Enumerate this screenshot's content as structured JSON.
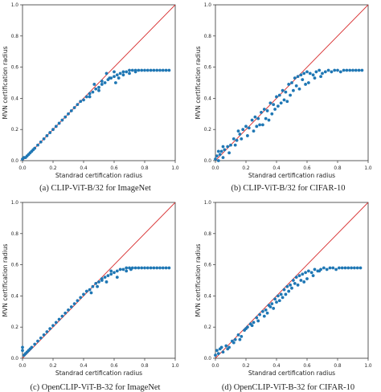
{
  "chart_data": [
    {
      "type": "scatter",
      "caption": "(a) CLIP-ViT-B/32 for ImageNet",
      "xlabel": "Standrad certification radius",
      "ylabel": "MVN certification radius",
      "xlim": [
        0,
        1.0
      ],
      "ylim": [
        0,
        1.0
      ],
      "xticks": [
        "0.0",
        "0.2",
        "0.4",
        "0.6",
        "0.8",
        "1.0"
      ],
      "yticks": [
        "0.0",
        "0.2",
        "0.4",
        "0.6",
        "0.8",
        "1.0"
      ],
      "grid": false,
      "colors": {
        "points": "#1f77b4",
        "reference": "#d62728"
      },
      "reference_line": {
        "x": [
          0,
          1
        ],
        "y": [
          0,
          1
        ]
      },
      "series": [
        {
          "x": [
            0.0,
            0.01,
            0.02,
            0.03,
            0.04,
            0.05,
            0.06,
            0.07,
            0.08,
            0.1,
            0.12,
            0.14,
            0.16,
            0.18,
            0.2,
            0.22,
            0.24,
            0.26,
            0.28,
            0.3,
            0.32,
            0.34,
            0.36,
            0.38,
            0.4,
            0.42,
            0.44,
            0.46,
            0.48,
            0.5,
            0.52,
            0.54,
            0.56,
            0.58,
            0.6,
            0.62,
            0.64,
            0.66,
            0.68,
            0.7,
            0.72,
            0.74,
            0.76,
            0.78,
            0.8,
            0.82,
            0.84,
            0.86,
            0.88,
            0.9,
            0.92,
            0.94,
            0.96,
            0.55,
            0.6,
            0.47,
            0.66,
            0.52,
            0.63,
            0.57,
            0.74,
            0.7,
            0.5,
            0.44,
            0.61
          ],
          "y": [
            0.01,
            0.02,
            0.02,
            0.03,
            0.04,
            0.05,
            0.06,
            0.07,
            0.08,
            0.1,
            0.12,
            0.14,
            0.16,
            0.18,
            0.2,
            0.22,
            0.24,
            0.26,
            0.28,
            0.3,
            0.32,
            0.34,
            0.36,
            0.38,
            0.39,
            0.41,
            0.43,
            0.44,
            0.46,
            0.47,
            0.49,
            0.5,
            0.52,
            0.53,
            0.54,
            0.55,
            0.56,
            0.57,
            0.57,
            0.58,
            0.58,
            0.58,
            0.58,
            0.58,
            0.58,
            0.58,
            0.58,
            0.58,
            0.58,
            0.58,
            0.58,
            0.58,
            0.58,
            0.56,
            0.57,
            0.49,
            0.55,
            0.51,
            0.53,
            0.53,
            0.57,
            0.56,
            0.45,
            0.41,
            0.5
          ]
        }
      ]
    },
    {
      "type": "scatter",
      "caption": "(b) CLIP-ViT-B/32 for CIFAR-10",
      "xlabel": "Standrad certification radius",
      "ylabel": "MVN certification radius",
      "xlim": [
        0,
        1.0
      ],
      "ylim": [
        0,
        1.0
      ],
      "xticks": [
        "0.0",
        "0.2",
        "0.4",
        "0.6",
        "0.8",
        "1.0"
      ],
      "yticks": [
        "0.0",
        "0.2",
        "0.4",
        "0.6",
        "0.8",
        "1.0"
      ],
      "grid": false,
      "colors": {
        "points": "#1f77b4",
        "reference": "#d62728"
      },
      "reference_line": {
        "x": [
          0,
          1
        ],
        "y": [
          0,
          1
        ]
      },
      "series": [
        {
          "x": [
            0.0,
            0.01,
            0.02,
            0.03,
            0.04,
            0.05,
            0.06,
            0.08,
            0.1,
            0.12,
            0.14,
            0.16,
            0.18,
            0.2,
            0.22,
            0.24,
            0.26,
            0.28,
            0.3,
            0.32,
            0.34,
            0.36,
            0.38,
            0.4,
            0.42,
            0.44,
            0.46,
            0.48,
            0.5,
            0.52,
            0.54,
            0.56,
            0.58,
            0.6,
            0.62,
            0.64,
            0.66,
            0.68,
            0.7,
            0.72,
            0.74,
            0.76,
            0.78,
            0.8,
            0.82,
            0.84,
            0.86,
            0.88,
            0.9,
            0.92,
            0.94,
            0.96,
            0.02,
            0.05,
            0.09,
            0.13,
            0.17,
            0.21,
            0.25,
            0.29,
            0.33,
            0.37,
            0.41,
            0.45,
            0.49,
            0.53,
            0.57,
            0.61,
            0.65,
            0.69,
            0.15,
            0.27,
            0.39,
            0.43,
            0.51,
            0.35,
            0.47,
            0.55,
            0.31,
            0.59
          ],
          "y": [
            0.01,
            0.03,
            0.0,
            0.04,
            0.06,
            0.02,
            0.07,
            0.09,
            0.1,
            0.14,
            0.13,
            0.17,
            0.2,
            0.22,
            0.21,
            0.26,
            0.28,
            0.27,
            0.31,
            0.33,
            0.32,
            0.37,
            0.36,
            0.41,
            0.42,
            0.45,
            0.44,
            0.49,
            0.5,
            0.53,
            0.54,
            0.55,
            0.56,
            0.57,
            0.56,
            0.55,
            0.57,
            0.58,
            0.56,
            0.57,
            0.58,
            0.57,
            0.58,
            0.58,
            0.57,
            0.58,
            0.58,
            0.58,
            0.58,
            0.58,
            0.58,
            0.58,
            0.06,
            0.09,
            0.05,
            0.1,
            0.14,
            0.16,
            0.19,
            0.23,
            0.27,
            0.3,
            0.35,
            0.39,
            0.42,
            0.48,
            0.52,
            0.5,
            0.53,
            0.54,
            0.19,
            0.22,
            0.33,
            0.37,
            0.45,
            0.26,
            0.38,
            0.46,
            0.23,
            0.49
          ]
        }
      ]
    },
    {
      "type": "scatter",
      "caption": "(c) OpenCLIP-ViT-B-32 for ImageNet",
      "xlabel": "Standrad certification radius",
      "ylabel": "MVN certification radius",
      "xlim": [
        0,
        1.0
      ],
      "ylim": [
        0,
        1.0
      ],
      "xticks": [
        "0.0",
        "0.2",
        "0.4",
        "0.6",
        "0.8",
        "1.0"
      ],
      "yticks": [
        "0.0",
        "0.2",
        "0.4",
        "0.6",
        "0.8",
        "1.0"
      ],
      "grid": false,
      "colors": {
        "points": "#1f77b4",
        "reference": "#d62728"
      },
      "reference_line": {
        "x": [
          0,
          1
        ],
        "y": [
          0,
          1
        ]
      },
      "series": [
        {
          "x": [
            0.0,
            0.0,
            0.01,
            0.02,
            0.03,
            0.04,
            0.05,
            0.06,
            0.08,
            0.1,
            0.12,
            0.14,
            0.16,
            0.18,
            0.2,
            0.22,
            0.24,
            0.26,
            0.28,
            0.3,
            0.32,
            0.34,
            0.36,
            0.38,
            0.4,
            0.42,
            0.44,
            0.46,
            0.48,
            0.5,
            0.52,
            0.54,
            0.56,
            0.58,
            0.6,
            0.62,
            0.64,
            0.66,
            0.68,
            0.7,
            0.72,
            0.74,
            0.76,
            0.78,
            0.8,
            0.82,
            0.84,
            0.86,
            0.88,
            0.9,
            0.92,
            0.94,
            0.96,
            0.45,
            0.52,
            0.58,
            0.62,
            0.49,
            0.55,
            0.68,
            0.71
          ],
          "y": [
            0.05,
            0.07,
            0.02,
            0.03,
            0.04,
            0.05,
            0.06,
            0.07,
            0.09,
            0.11,
            0.13,
            0.15,
            0.17,
            0.19,
            0.21,
            0.23,
            0.25,
            0.27,
            0.29,
            0.31,
            0.33,
            0.35,
            0.37,
            0.39,
            0.41,
            0.43,
            0.44,
            0.46,
            0.48,
            0.49,
            0.5,
            0.52,
            0.53,
            0.54,
            0.55,
            0.56,
            0.57,
            0.57,
            0.58,
            0.58,
            0.58,
            0.58,
            0.58,
            0.58,
            0.58,
            0.58,
            0.58,
            0.58,
            0.58,
            0.58,
            0.58,
            0.58,
            0.58,
            0.42,
            0.51,
            0.56,
            0.52,
            0.46,
            0.49,
            0.56,
            0.57
          ]
        }
      ]
    },
    {
      "type": "scatter",
      "caption": "(d) OpenCLIP-ViT-B-32 for CIFAR-10",
      "xlabel": "Standrad certification radius",
      "ylabel": "MVN certification radius",
      "xlim": [
        0,
        1.0
      ],
      "ylim": [
        0,
        1.0
      ],
      "xticks": [
        "0.0",
        "0.2",
        "0.4",
        "0.6",
        "0.8",
        "1.0"
      ],
      "yticks": [
        "0.0",
        "0.2",
        "0.4",
        "0.6",
        "0.8",
        "1.0"
      ],
      "grid": false,
      "colors": {
        "points": "#1f77b4",
        "reference": "#d62728"
      },
      "reference_line": {
        "x": [
          0,
          1
        ],
        "y": [
          0,
          1
        ]
      },
      "series": [
        {
          "x": [
            0.0,
            0.01,
            0.02,
            0.03,
            0.05,
            0.07,
            0.09,
            0.11,
            0.13,
            0.15,
            0.17,
            0.19,
            0.21,
            0.23,
            0.25,
            0.27,
            0.29,
            0.31,
            0.33,
            0.35,
            0.37,
            0.39,
            0.41,
            0.43,
            0.45,
            0.47,
            0.49,
            0.51,
            0.53,
            0.55,
            0.57,
            0.59,
            0.61,
            0.63,
            0.65,
            0.67,
            0.69,
            0.71,
            0.73,
            0.75,
            0.77,
            0.79,
            0.81,
            0.83,
            0.85,
            0.87,
            0.89,
            0.91,
            0.93,
            0.95,
            0.04,
            0.08,
            0.12,
            0.16,
            0.2,
            0.24,
            0.28,
            0.32,
            0.36,
            0.4,
            0.44,
            0.48,
            0.52,
            0.56,
            0.6,
            0.64,
            0.68,
            0.34,
            0.42,
            0.5,
            0.58,
            0.38,
            0.46,
            0.54
          ],
          "y": [
            0.02,
            0.05,
            0.03,
            0.06,
            0.04,
            0.08,
            0.07,
            0.11,
            0.12,
            0.15,
            0.14,
            0.18,
            0.2,
            0.22,
            0.23,
            0.26,
            0.28,
            0.3,
            0.31,
            0.34,
            0.35,
            0.38,
            0.4,
            0.41,
            0.44,
            0.46,
            0.47,
            0.5,
            0.52,
            0.53,
            0.54,
            0.55,
            0.56,
            0.55,
            0.57,
            0.56,
            0.57,
            0.58,
            0.57,
            0.58,
            0.58,
            0.57,
            0.58,
            0.58,
            0.58,
            0.58,
            0.58,
            0.58,
            0.58,
            0.58,
            0.07,
            0.06,
            0.1,
            0.12,
            0.19,
            0.21,
            0.24,
            0.27,
            0.33,
            0.36,
            0.39,
            0.43,
            0.48,
            0.5,
            0.51,
            0.53,
            0.56,
            0.29,
            0.37,
            0.45,
            0.49,
            0.32,
            0.41,
            0.47
          ]
        }
      ]
    }
  ]
}
